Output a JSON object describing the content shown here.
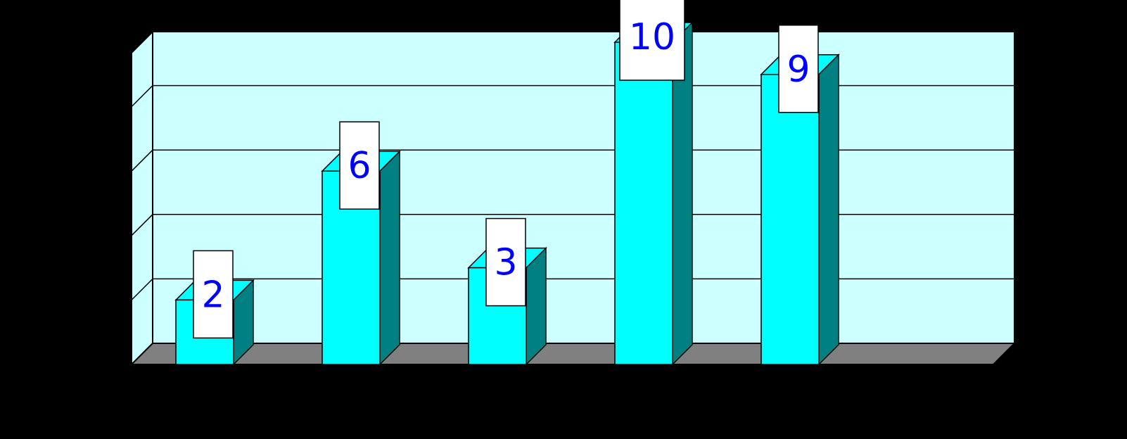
{
  "chart_data": {
    "type": "bar",
    "categories": [
      "",
      "",
      "",
      "",
      ""
    ],
    "values": [
      2,
      6,
      3,
      10,
      9
    ],
    "data_labels": [
      "2",
      "6",
      "3",
      "10",
      "9"
    ],
    "title": "",
    "xlabel": "",
    "ylabel": "",
    "ylim": [
      0,
      10
    ],
    "grid": true,
    "legend": "none",
    "three_d": true
  },
  "colors": {
    "background": "#000000",
    "wall": "#ccffff",
    "floor": "#808080",
    "bar_front": "#00ffff",
    "bar_side": "#008080",
    "label_box": "#ffffff",
    "label_text": "#0000ff",
    "gridline": "#000000"
  }
}
